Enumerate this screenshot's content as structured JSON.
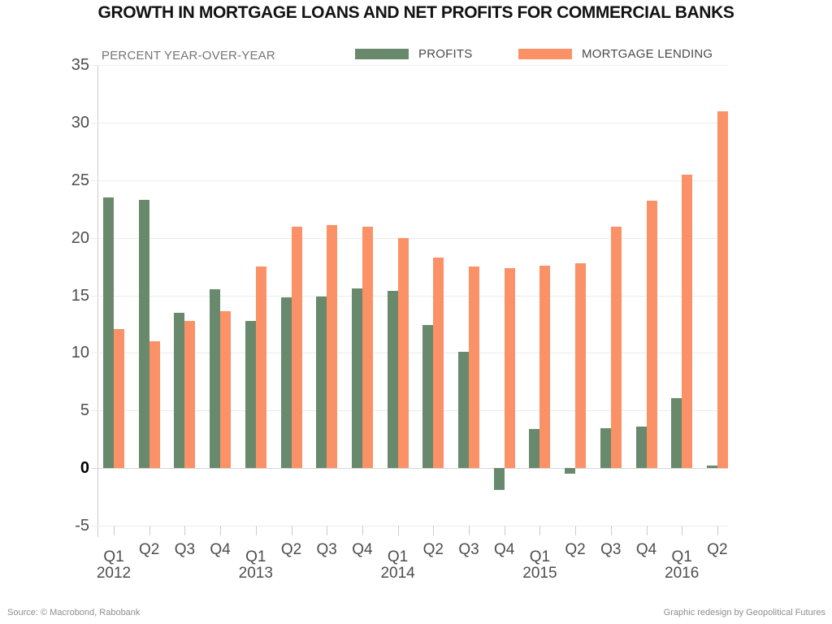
{
  "footer": {
    "source": "Source: © Macrobond, Rabobank",
    "credit": "Graphic redesign by Geopolitical Futures"
  },
  "chart_data": {
    "type": "bar",
    "title": "GROWTH IN MORTGAGE LOANS AND NET PROFITS FOR COMMERCIAL BANKS",
    "xlabel": "",
    "ylabel": "PERCENT YEAR-OVER-YEAR",
    "ylim": [
      -5,
      35
    ],
    "ytick_step": 5,
    "grid": true,
    "legend_position": "top",
    "categories": [
      "Q1 2012",
      "Q2 2012",
      "Q3 2012",
      "Q4 2012",
      "Q1 2013",
      "Q2 2013",
      "Q3 2013",
      "Q4 2013",
      "Q1 2014",
      "Q2 2014",
      "Q3 2014",
      "Q4 2014",
      "Q1 2015",
      "Q2 2015",
      "Q3 2015",
      "Q4 2015",
      "Q1 2016",
      "Q2 2016"
    ],
    "series": [
      {
        "name": "PROFITS",
        "color": "#69896c",
        "values": [
          23.5,
          23.3,
          13.5,
          15.5,
          12.8,
          14.8,
          14.9,
          15.6,
          15.4,
          12.4,
          10.1,
          -1.9,
          3.4,
          -0.5,
          3.5,
          3.6,
          6.1,
          0.2
        ]
      },
      {
        "name": "MORTGAGE LENDING",
        "color": "#fb9166",
        "values": [
          12.1,
          11.0,
          12.8,
          13.6,
          17.5,
          21.0,
          21.1,
          21.0,
          20.0,
          18.3,
          17.5,
          17.4,
          17.6,
          17.8,
          21.0,
          23.2,
          25.5,
          31.0
        ]
      }
    ]
  }
}
